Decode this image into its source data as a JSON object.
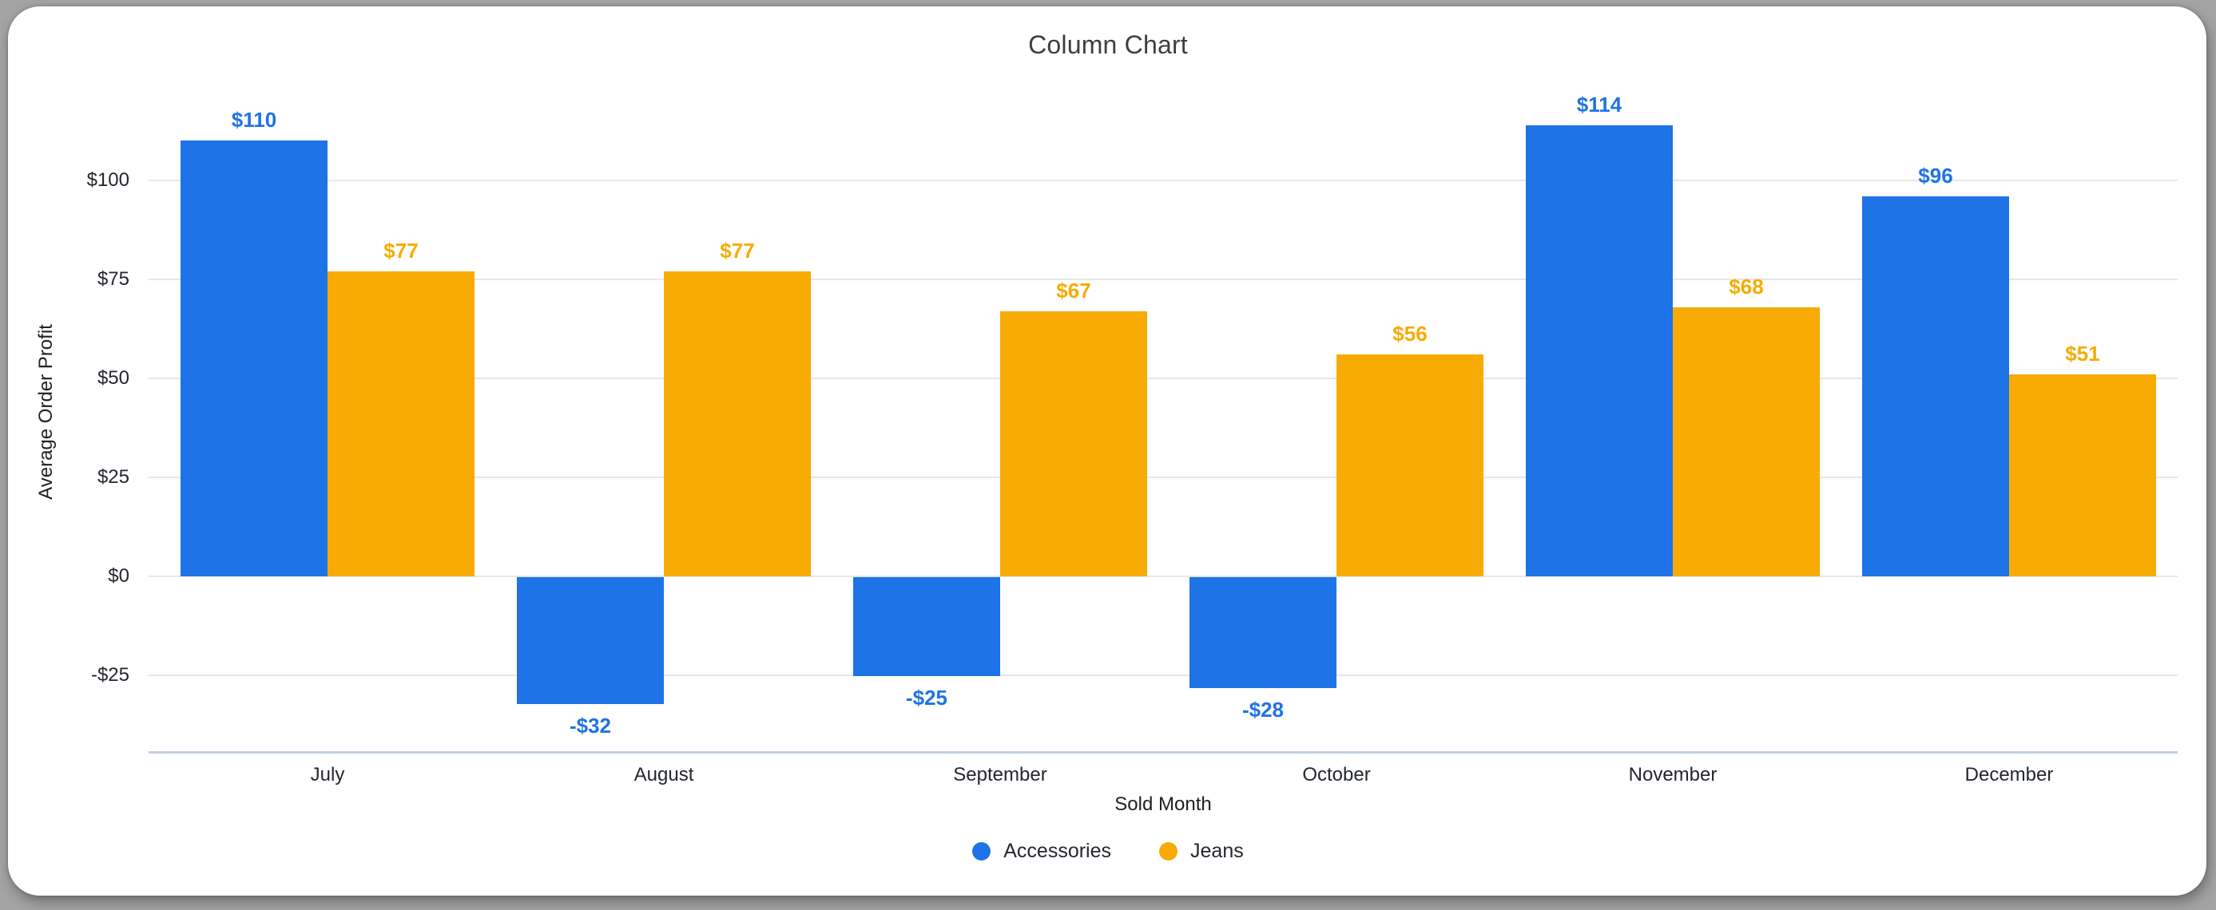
{
  "card": {
    "title": "Column Chart"
  },
  "chart_data": {
    "type": "bar",
    "title": "Column Chart",
    "xlabel": "Sold Month",
    "ylabel": "Average Order Profit",
    "categories": [
      "July",
      "August",
      "September",
      "October",
      "November",
      "December"
    ],
    "series": [
      {
        "name": "Accessories",
        "color": "#1e73e6",
        "values": [
          110,
          -32,
          -25,
          -28,
          114,
          96
        ],
        "data_labels": [
          "$110",
          "-$32",
          "-$25",
          "-$28",
          "$114",
          "$96"
        ]
      },
      {
        "name": "Jeans",
        "color": "#f8ab02",
        "values": [
          77,
          77,
          67,
          56,
          68,
          51
        ],
        "data_labels": [
          "$77",
          "$77",
          "$67",
          "$56",
          "$68",
          "$51"
        ]
      }
    ],
    "y_ticks": [
      {
        "value": 100,
        "label": "$100"
      },
      {
        "value": 75,
        "label": "$75"
      },
      {
        "value": 50,
        "label": "$50"
      },
      {
        "value": 25,
        "label": "$25"
      },
      {
        "value": 0,
        "label": "$0"
      },
      {
        "value": -25,
        "label": "-$25"
      }
    ],
    "ylim": [
      -45,
      122
    ],
    "grid": true,
    "legend_position": "bottom"
  },
  "colors": {
    "accent_blue": "#1e73e6",
    "accent_orange": "#f8ab02",
    "gridline": "#e7e7e7",
    "axis_line": "#c2cfe6",
    "title_text": "#3c4043",
    "tick_text": "#23272e",
    "page_background": "#a4a4a4",
    "card_background": "#ffffff"
  }
}
